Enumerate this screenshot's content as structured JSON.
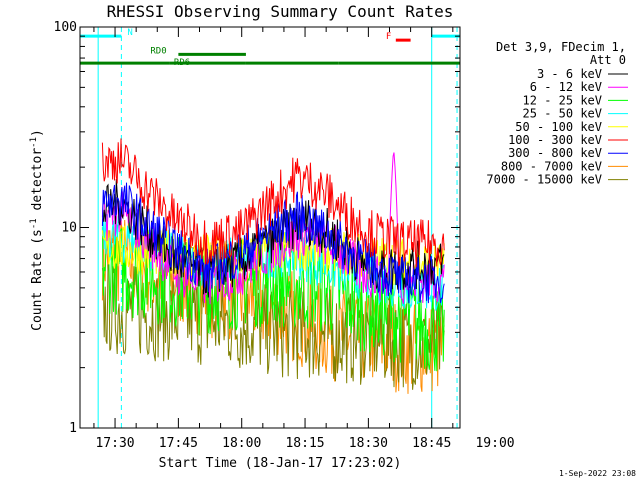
{
  "chart_data": {
    "type": "line",
    "title": "RHESSI Observing Summary Count Rates",
    "xlabel": "Start Time (18-Jan-17 17:23:02)",
    "ylabel_prefix": "Count Rate (s",
    "ylabel_exp": "-1",
    "ylabel_suffix": " detector",
    "ylabel_exp2": "-1",
    "ylabel_end": ")",
    "yscale": "log",
    "ylim": [
      1,
      100
    ],
    "xlim_minutes": [
      -8.3,
      81.7
    ],
    "x_origin": "17:30",
    "x_ticks": [
      {
        "minutes": 0,
        "label": "17:30"
      },
      {
        "minutes": 15,
        "label": "17:45"
      },
      {
        "minutes": 30,
        "label": "18:00"
      },
      {
        "minutes": 45,
        "label": "18:15"
      },
      {
        "minutes": 60,
        "label": "18:30"
      },
      {
        "minutes": 75,
        "label": "18:45"
      },
      {
        "minutes": 90,
        "label": "19:00"
      }
    ],
    "y_ticks": [
      {
        "value": 1,
        "label": "1"
      },
      {
        "value": 10,
        "label": "10"
      },
      {
        "value": 100,
        "label": "100"
      }
    ],
    "legend_header": [
      "Det 3,9, FDecim 1,",
      "Att 0"
    ],
    "series": [
      {
        "name": "3 - 6 keV",
        "color": "#000000",
        "profile": [
          [
            -3,
            12
          ],
          [
            1,
            13.5
          ],
          [
            8,
            9.5
          ],
          [
            14,
            7
          ],
          [
            22,
            5.8
          ],
          [
            30,
            6.8
          ],
          [
            38,
            9
          ],
          [
            45,
            11
          ],
          [
            52,
            9
          ],
          [
            58,
            6.8
          ],
          [
            65,
            6.2
          ],
          [
            72,
            6.5
          ],
          [
            78,
            6.5
          ]
        ]
      },
      {
        "name": "6 - 12 keV",
        "color": "#ff00ff",
        "profile": [
          [
            -3,
            11
          ],
          [
            1,
            12
          ],
          [
            8,
            8.5
          ],
          [
            14,
            6
          ],
          [
            22,
            5.2
          ],
          [
            30,
            6
          ],
          [
            38,
            8
          ],
          [
            45,
            9.5
          ],
          [
            52,
            8
          ],
          [
            58,
            6
          ],
          [
            65,
            5.5
          ],
          [
            72,
            5.5
          ],
          [
            78,
            5.5
          ]
        ],
        "spike": {
          "minutes": 66,
          "value": 25
        }
      },
      {
        "name": "12 - 25 keV",
        "color": "#00ff00",
        "profile": [
          [
            -3,
            6.5
          ],
          [
            5,
            6
          ],
          [
            20,
            5
          ],
          [
            35,
            5.5
          ],
          [
            50,
            5
          ],
          [
            60,
            4
          ],
          [
            70,
            3.5
          ],
          [
            78,
            3
          ]
        ]
      },
      {
        "name": "25 - 50 keV",
        "color": "#00ffff",
        "profile": [
          [
            -3,
            9
          ],
          [
            5,
            8.5
          ],
          [
            20,
            6.5
          ],
          [
            40,
            7.5
          ],
          [
            55,
            6
          ],
          [
            70,
            5
          ],
          [
            78,
            5
          ]
        ]
      },
      {
        "name": "50 - 100 keV",
        "color": "#ffff00",
        "profile": [
          [
            -3,
            8
          ],
          [
            10,
            7.5
          ],
          [
            25,
            7
          ],
          [
            45,
            8
          ],
          [
            60,
            7
          ],
          [
            78,
            6.5
          ]
        ]
      },
      {
        "name": "100 - 300 keV",
        "color": "#ff0000",
        "profile": [
          [
            -3,
            21
          ],
          [
            1,
            22
          ],
          [
            8,
            15
          ],
          [
            14,
            11
          ],
          [
            22,
            8.5
          ],
          [
            30,
            9.5
          ],
          [
            38,
            14
          ],
          [
            43,
            18
          ],
          [
            48,
            16
          ],
          [
            54,
            12
          ],
          [
            60,
            9.5
          ],
          [
            68,
            8.3
          ],
          [
            78,
            8.3
          ]
        ]
      },
      {
        "name": "300 - 800 keV",
        "color": "#0000ff",
        "profile": [
          [
            -3,
            13
          ],
          [
            1,
            14
          ],
          [
            8,
            10
          ],
          [
            14,
            8
          ],
          [
            22,
            6
          ],
          [
            30,
            7.5
          ],
          [
            38,
            10
          ],
          [
            43,
            11.5
          ],
          [
            48,
            10
          ],
          [
            54,
            8
          ],
          [
            60,
            6.5
          ],
          [
            68,
            5.5
          ],
          [
            78,
            5.5
          ]
        ]
      },
      {
        "name": "800 - 7000 keV",
        "color": "#ff8c00",
        "profile": [
          [
            -3,
            7.5
          ],
          [
            5,
            6.5
          ],
          [
            20,
            5
          ],
          [
            30,
            4.5
          ],
          [
            40,
            3.8
          ],
          [
            50,
            3
          ],
          [
            60,
            2.8
          ],
          [
            70,
            2.5
          ],
          [
            78,
            2.5
          ]
        ]
      },
      {
        "name": "7000 - 15000 keV",
        "color": "#808000",
        "profile": [
          [
            -3,
            4
          ],
          [
            20,
            3.5
          ],
          [
            40,
            3
          ],
          [
            60,
            2.8
          ],
          [
            78,
            2.6
          ]
        ]
      }
    ],
    "annotations": [
      {
        "label": "N",
        "color": "#00ffff",
        "level": 90,
        "segments": [
          [
            -8.3,
            1.5
          ],
          [
            75,
            81.7
          ]
        ]
      },
      {
        "label": "RD0",
        "color": "#008000",
        "level": 73,
        "segments": [
          [
            15,
            31
          ]
        ]
      },
      {
        "label": "RD6",
        "color": "#008000",
        "level": 66,
        "segments": [
          [
            -8.3,
            13
          ],
          [
            13,
            31
          ],
          [
            31,
            53
          ],
          [
            53,
            81.7
          ]
        ]
      },
      {
        "label": "F",
        "color": "#ff0000",
        "level": 86,
        "segments": [
          [
            66.5,
            70
          ]
        ]
      }
    ],
    "vertical_lines": [
      {
        "minutes": -4,
        "color": "#00ffff",
        "style": "solid"
      },
      {
        "minutes": 1.5,
        "color": "#00ffff",
        "style": "dashed"
      },
      {
        "minutes": 75,
        "color": "#00ffff",
        "style": "solid"
      },
      {
        "minutes": 81,
        "color": "#00ffff",
        "style": "dashed"
      }
    ],
    "data_range_minutes": [
      -3,
      78
    ]
  },
  "footer": {
    "date": "1-Sep-2022 23:08"
  }
}
